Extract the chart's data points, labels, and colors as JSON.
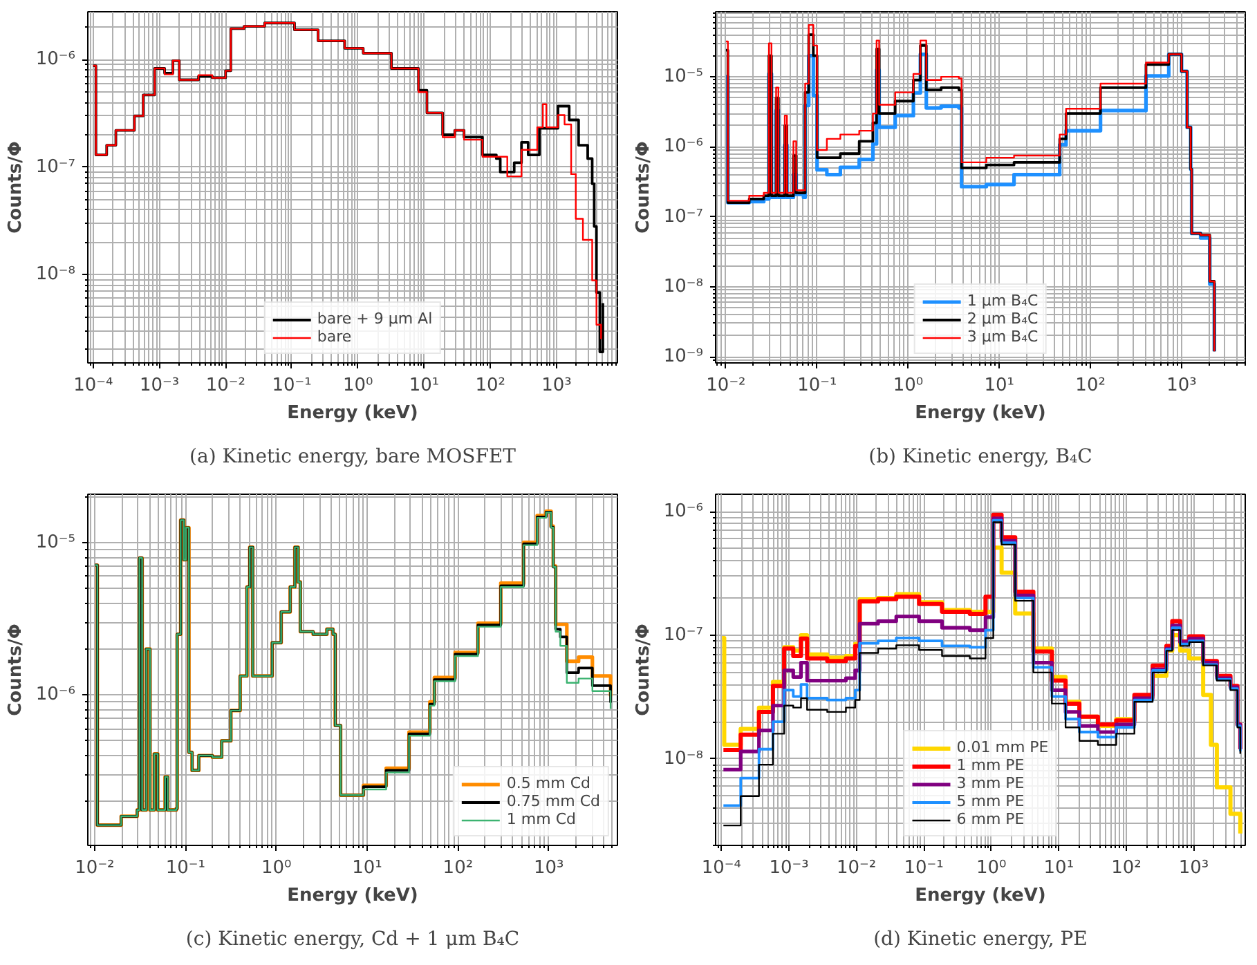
{
  "chart_data": [
    {
      "type": "step",
      "title": "(a) Kinetic energy, bare MOSFET",
      "xlabel": "Energy (keV)",
      "ylabel": "Counts/Φ",
      "log": "xy",
      "grid": true,
      "legend": "bottom",
      "xlim": [
        8.3e-05,
        8300.0
      ],
      "ylim": [
        1.5e-09,
        2.8e-06
      ],
      "xticks": [
        {
          "value": 0.0001,
          "label": "10⁻⁴"
        },
        {
          "value": 0.001,
          "label": "10⁻³"
        },
        {
          "value": 0.01,
          "label": "10⁻²"
        },
        {
          "value": 0.1,
          "label": "10⁻¹"
        },
        {
          "value": 1,
          "label": "10⁰"
        },
        {
          "value": 10,
          "label": "10¹"
        },
        {
          "value": 100,
          "label": "10²"
        },
        {
          "value": 1000,
          "label": "10³"
        }
      ],
      "yticks": [
        {
          "value": 1e-08,
          "label": "10⁻⁸"
        },
        {
          "value": 1e-07,
          "label": "10⁻⁷"
        },
        {
          "value": 1e-06,
          "label": "10⁻⁶"
        }
      ],
      "series": [
        {
          "name": "bare + 9 µm Al",
          "color": "#000000",
          "x": [
            0.0001,
            0.00011,
            0.00016,
            0.00022,
            0.00042,
            0.00057,
            0.00085,
            0.0012,
            0.0016,
            0.002,
            0.0039,
            0.0063,
            0.01,
            0.012,
            0.019,
            0.039,
            0.11,
            0.25,
            0.63,
            1.2,
            3.2,
            8.2,
            11,
            19,
            29,
            40,
            76,
            123,
            141,
            229,
            295,
            372,
            550,
            1050,
            1550,
            2150,
            2950,
            3450,
            3700,
            4000,
            4500,
            5000
          ],
          "values": [
            8.8e-07,
            1.3e-07,
            1.6e-07,
            2.2e-07,
            3e-07,
            4.7e-07,
            8.3e-07,
            7.5e-07,
            9.8e-07,
            6.5e-07,
            7e-07,
            6.8e-07,
            7.9e-07,
            1.95e-06,
            2.05e-06,
            2.2e-06,
            1.9e-06,
            1.5e-06,
            1.28e-06,
            1.15e-06,
            8.3e-07,
            5.2e-07,
            3.2e-07,
            2e-07,
            2.2e-07,
            1.9e-07,
            1.3e-07,
            1.2e-07,
            9e-08,
            1.1e-07,
            1.7e-07,
            1.3e-07,
            2.3e-07,
            3.7e-07,
            2.75e-07,
            1.6e-07,
            1.2e-07,
            7e-08,
            2.8e-08,
            6.8e-09,
            1.9e-09,
            5.4e-09
          ]
        },
        {
          "name": "bare",
          "color": "#ff0000",
          "x": [
            0.0001,
            0.00011,
            0.00016,
            0.00022,
            0.00042,
            0.00057,
            0.00085,
            0.0012,
            0.0016,
            0.002,
            0.0039,
            0.0063,
            0.01,
            0.012,
            0.019,
            0.039,
            0.11,
            0.25,
            0.63,
            1.2,
            3.2,
            8.2,
            11,
            19,
            29,
            40,
            76,
            180,
            295,
            510,
            620,
            700,
            1050,
            1320,
            1660,
            1950,
            2500,
            3450,
            4000,
            4700
          ],
          "values": [
            8.8e-07,
            1.3e-07,
            1.6e-07,
            2.2e-07,
            3e-07,
            4.7e-07,
            8.3e-07,
            7.3e-07,
            9.8e-07,
            6.5e-07,
            7.2e-07,
            6.8e-07,
            7.9e-07,
            1.95e-06,
            2.05e-06,
            2.2e-06,
            1.9e-06,
            1.5e-06,
            1.28e-06,
            1.15e-06,
            8.3e-07,
            5e-07,
            3.2e-07,
            1.9e-07,
            2.2e-07,
            1.8e-07,
            1.25e-07,
            8.2e-08,
            1.45e-07,
            2.35e-07,
            3.85e-07,
            2.35e-07,
            3.05e-07,
            2.5e-07,
            8.6e-08,
            3.3e-08,
            2.1e-08,
            8.8e-09,
            3.4e-09,
            2.5e-09
          ]
        }
      ]
    },
    {
      "type": "step",
      "title": "(b) Kinetic energy, B₄C",
      "xlabel": "Energy (keV)",
      "ylabel": "Counts/Φ",
      "log": "xy",
      "grid": true,
      "legend": "bottom",
      "xlim": [
        0.0077,
        5000.0
      ],
      "ylim": [
        8.2e-10,
        8.5e-05
      ],
      "xticks": [
        {
          "value": 0.01,
          "label": "10⁻²"
        },
        {
          "value": 0.1,
          "label": "10⁻¹"
        },
        {
          "value": 1,
          "label": "10⁰"
        },
        {
          "value": 10,
          "label": "10¹"
        },
        {
          "value": 100,
          "label": "10²"
        },
        {
          "value": 1000,
          "label": "10³"
        }
      ],
      "yticks": [
        {
          "value": 1e-09,
          "label": "10⁻⁹"
        },
        {
          "value": 1e-08,
          "label": "10⁻⁸"
        },
        {
          "value": 1e-07,
          "label": "10⁻⁷"
        },
        {
          "value": 1e-06,
          "label": "10⁻⁶"
        },
        {
          "value": 1e-05,
          "label": "10⁻⁵"
        }
      ],
      "x": [
        0.01,
        0.0105,
        0.018,
        0.026,
        0.0296,
        0.0316,
        0.0355,
        0.0376,
        0.0442,
        0.0467,
        0.055,
        0.059,
        0.071,
        0.074,
        0.081,
        0.091,
        0.1,
        0.128,
        0.18,
        0.29,
        0.41,
        0.45,
        0.48,
        0.72,
        1.14,
        1.36,
        1.58,
        2.3,
        3.6,
        3.85,
        7.2,
        14.5,
        46,
        54,
        129,
        407,
        724,
        912,
        1000,
        1150,
        1260,
        1290,
        1620,
        2040,
        2290
      ],
      "series": [
        {
          "name": "1 µm B₄C",
          "color": "#1e90ff",
          "values": [
            1e-05,
            1.6e-07,
            1.65e-07,
            1.8e-07,
            1.1e-05,
            1.9e-07,
            3.3e-06,
            1.9e-07,
            1.06e-06,
            1.9e-07,
            4e-07,
            2.1e-07,
            1.9e-07,
            3.9e-06,
            2e-05,
            5.4e-06,
            4.7e-07,
            4e-07,
            5.1e-07,
            6.6e-07,
            1.1e-06,
            1.25e-05,
            1.9e-06,
            2.8e-06,
            5.9e-06,
            2.1e-05,
            3.6e-06,
            3.8e-06,
            3.6e-06,
            2.7e-07,
            2.9e-07,
            4e-07,
            1.07e-06,
            1.7e-06,
            3.3e-06,
            1.03e-05,
            2.1e-05,
            2.1e-05,
            1.2e-05,
            1.9e-06,
            4.8e-07,
            5.8e-08,
            5e-08,
            1.1e-08,
            1.2e-09
          ]
        },
        {
          "name": "2 µm B₄C",
          "color": "#000000",
          "values": [
            2.4e-05,
            1.6e-07,
            1.8e-07,
            2e-07,
            2e-05,
            2e-07,
            5e-06,
            2e-07,
            2e-06,
            2e-07,
            7.5e-07,
            2.2e-07,
            2.2e-07,
            6e-06,
            4e-05,
            2e-05,
            7e-07,
            7e-07,
            8e-07,
            1.2e-06,
            2.2e-06,
            2.5e-05,
            3e-06,
            4.5e-06,
            9e-06,
            2.8e-05,
            6.5e-06,
            7e-06,
            6.5e-06,
            5e-07,
            5.5e-07,
            6e-07,
            1.3e-06,
            3e-06,
            7e-06,
            1.5e-05,
            2.1e-05,
            2.1e-05,
            1.2e-05,
            1.9e-06,
            4.8e-07,
            5.8e-08,
            5.5e-08,
            1.2e-08,
            1.2e-09
          ]
        },
        {
          "name": "3 µm B₄C",
          "color": "#ff0000",
          "values": [
            3.2e-05,
            1.7e-07,
            2e-07,
            2.2e-07,
            3e-05,
            2.2e-07,
            7e-06,
            2.2e-07,
            2.8e-06,
            2.2e-07,
            1.2e-06,
            2.4e-07,
            2.4e-07,
            8e-06,
            5.5e-05,
            2.8e-05,
            9e-07,
            1.3e-06,
            1.5e-06,
            1.7e-06,
            3e-06,
            3.3e-05,
            4e-06,
            6e-06,
            1.1e-05,
            3.3e-05,
            9e-06,
            1e-05,
            9.5e-06,
            6e-07,
            7e-07,
            7.5e-07,
            1.5e-06,
            3.5e-06,
            8e-06,
            1.6e-05,
            2.1e-05,
            2.1e-05,
            1.2e-05,
            1.9e-06,
            4.8e-07,
            5.8e-08,
            5.5e-08,
            1.2e-08,
            1.2e-09
          ]
        }
      ]
    },
    {
      "type": "step",
      "title": "(c) Kinetic energy, Cd + 1 μm B₄C",
      "xlabel": "Energy (keV)",
      "ylabel": "Counts/Φ",
      "log": "xy",
      "grid": true,
      "legend": "bottom right",
      "xlim": [
        0.0084,
        5700.0
      ],
      "ylim": [
        1.03e-07,
        2.07e-05
      ],
      "xticks": [
        {
          "value": 0.01,
          "label": "10⁻²"
        },
        {
          "value": 0.1,
          "label": "10⁻¹"
        },
        {
          "value": 1,
          "label": "10⁰"
        },
        {
          "value": 10,
          "label": "10¹"
        },
        {
          "value": 100,
          "label": "10²"
        },
        {
          "value": 1000,
          "label": "10³"
        }
      ],
      "yticks": [
        {
          "value": 1e-06,
          "label": "10⁻⁶"
        },
        {
          "value": 1e-05,
          "label": "10⁻⁵"
        }
      ],
      "x": [
        0.0101,
        0.0107,
        0.0196,
        0.0294,
        0.0311,
        0.0333,
        0.037,
        0.0406,
        0.0452,
        0.0495,
        0.0596,
        0.0637,
        0.079,
        0.081,
        0.0885,
        0.096,
        0.101,
        0.109,
        0.118,
        0.14,
        0.198,
        0.25,
        0.316,
        0.4,
        0.475,
        0.51,
        0.55,
        0.9,
        1.13,
        1.42,
        1.6,
        1.74,
        1.84,
        2.54,
        3.6,
        4.2,
        4.45,
        5.1,
        9.1,
        16.2,
        28.9,
        49,
        55,
        93,
        166,
        296,
        528,
        745,
        933,
        1060,
        1120,
        1190,
        1340,
        1580,
        2130,
        3020,
        4790
      ],
      "series": [
        {
          "name": "0.5 mm Cd",
          "color": "#ff8c00",
          "values": [
            7.1e-06,
            1.4e-07,
            1.6e-07,
            1.76e-07,
            7.9e-06,
            1.76e-07,
            2e-06,
            1.76e-07,
            4.1e-07,
            1.76e-07,
            2.9e-07,
            1.76e-07,
            1.8e-07,
            2.5e-06,
            1.4e-05,
            7.7e-06,
            1.25e-05,
            4.2e-07,
            3.2e-07,
            4e-07,
            3.9e-07,
            5e-07,
            7.9e-07,
            1.33e-06,
            5.1e-06,
            9.3e-06,
            1.33e-06,
            2.2e-06,
            3.5e-06,
            5.1e-06,
            9.3e-06,
            5.5e-06,
            2.6e-06,
            2.5e-06,
            2.7e-06,
            2.5e-06,
            6.3e-07,
            2.2e-07,
            2.55e-07,
            3.3e-07,
            5.7e-07,
            9e-07,
            1.3e-06,
            1.9e-06,
            2.95e-06,
            5.4e-06,
            1e-05,
            1.5e-05,
            1.6e-05,
            1.28e-05,
            7e-06,
            2.9e-06,
            2.9e-06,
            1.66e-06,
            1.77e-06,
            1.33e-06,
            9.8e-07
          ]
        },
        {
          "name": "0.75 mm Cd",
          "color": "#000000",
          "values": [
            7.1e-06,
            1.4e-07,
            1.6e-07,
            1.76e-07,
            7.9e-06,
            1.76e-07,
            2e-06,
            1.76e-07,
            4.1e-07,
            1.76e-07,
            2.9e-07,
            1.76e-07,
            1.8e-07,
            2.5e-06,
            1.4e-05,
            7.7e-06,
            1.25e-05,
            4.2e-07,
            3.2e-07,
            4e-07,
            3.9e-07,
            5e-07,
            7.9e-07,
            1.33e-06,
            5.1e-06,
            9.3e-06,
            1.33e-06,
            2.2e-06,
            3.5e-06,
            5.1e-06,
            9.3e-06,
            5.5e-06,
            2.6e-06,
            2.5e-06,
            2.7e-06,
            2.5e-06,
            6.3e-07,
            2.2e-07,
            2.5e-07,
            3.2e-07,
            5.55e-07,
            8.7e-07,
            1.26e-06,
            1.85e-06,
            2.87e-06,
            5.2e-06,
            9.8e-06,
            1.47e-05,
            1.58e-05,
            1.26e-05,
            6.9e-06,
            2.7e-06,
            2.4e-06,
            1.4e-06,
            1.5e-06,
            1.15e-06,
            8.9e-07
          ]
        },
        {
          "name": "1 mm Cd",
          "color": "#3cb371",
          "values": [
            7.1e-06,
            1.4e-07,
            1.6e-07,
            1.76e-07,
            7.9e-06,
            1.76e-07,
            2e-06,
            1.76e-07,
            4.1e-07,
            1.76e-07,
            2.9e-07,
            1.76e-07,
            1.8e-07,
            2.5e-06,
            1.4e-05,
            7.7e-06,
            1.25e-05,
            4.2e-07,
            3.2e-07,
            4e-07,
            3.9e-07,
            5e-07,
            7.9e-07,
            1.33e-06,
            5.1e-06,
            9.3e-06,
            1.33e-06,
            2.2e-06,
            3.5e-06,
            5.1e-06,
            9.3e-06,
            5.5e-06,
            2.6e-06,
            2.5e-06,
            2.7e-06,
            2.5e-06,
            6.3e-07,
            2.2e-07,
            2.4e-07,
            3.1e-07,
            5.4e-07,
            8.5e-07,
            1.23e-06,
            1.8e-06,
            2.8e-06,
            5.1e-06,
            9.6e-06,
            1.45e-05,
            1.57e-05,
            1.25e-05,
            6.9e-06,
            2.6e-06,
            2.1e-06,
            1.2e-06,
            1.28e-06,
            1.06e-06,
            8.1e-07
          ]
        }
      ]
    },
    {
      "type": "step",
      "title": "(d) Kinetic energy, PE",
      "xlabel": "Energy (keV)",
      "ylabel": "Counts/Φ",
      "log": "xy",
      "grid": true,
      "legend": "bottom",
      "xlim": [
        8.2e-05,
        5800.0
      ],
      "ylim": [
        2e-09,
        1.38e-06
      ],
      "xticks": [
        {
          "value": 0.0001,
          "label": "10⁻⁴"
        },
        {
          "value": 0.001,
          "label": "10⁻³"
        },
        {
          "value": 0.01,
          "label": "10⁻²"
        },
        {
          "value": 0.1,
          "label": "10⁻¹"
        },
        {
          "value": 1,
          "label": "10⁰"
        },
        {
          "value": 10,
          "label": "10¹"
        },
        {
          "value": 100,
          "label": "10²"
        },
        {
          "value": 1000,
          "label": "10³"
        }
      ],
      "yticks": [
        {
          "value": 1e-08,
          "label": "10⁻⁸"
        },
        {
          "value": 1e-07,
          "label": "10⁻⁷"
        },
        {
          "value": 1e-06,
          "label": "10⁻⁶"
        }
      ],
      "x": [
        0.000107,
        0.000193,
        0.00036,
        0.00058,
        0.00085,
        0.00116,
        0.00151,
        0.00186,
        0.0037,
        0.007,
        0.0096,
        0.0112,
        0.021,
        0.039,
        0.085,
        0.186,
        0.48,
        0.82,
        1.07,
        1.42,
        2.26,
        4.2,
        7.9,
        12.6,
        20.2,
        38,
        71,
        132,
        246,
        393,
        480,
        630,
        857,
        1380,
        2200,
        3500,
        4440,
        4900
      ],
      "series": [
        {
          "name": "0.01 mm PE",
          "color": "#ffd700",
          "x": [
            0.000102,
            0.00011,
            0.000193,
            0.00036,
            0.00058,
            0.00085,
            0.00116,
            0.00151,
            0.00186,
            0.0037,
            0.007,
            0.0096,
            0.0112,
            0.021,
            0.039,
            0.085,
            0.186,
            0.48,
            0.82,
            1.07,
            1.42,
            2.26,
            4.2,
            7.9,
            12.6,
            20.2,
            38,
            71,
            132,
            246,
            393,
            480,
            630,
            857,
            1380,
            1800,
            2200,
            3500,
            4900
          ],
          "values": [
            9.5e-08,
            1.3e-08,
            1.75e-08,
            2.6e-08,
            4.2e-08,
            8e-08,
            7.5e-08,
            1e-07,
            7e-08,
            6.6e-08,
            6.8e-08,
            8.5e-08,
            1.95e-07,
            2e-07,
            2.15e-07,
            1.85e-07,
            1.6e-07,
            1.55e-07,
            1.55e-07,
            5.1e-07,
            3.2e-07,
            1.5e-07,
            7.8e-08,
            4.6e-08,
            2.9e-08,
            2.2e-08,
            1.85e-08,
            2.1e-08,
            3.2e-08,
            4.7e-08,
            7.5e-08,
            1e-07,
            7.5e-08,
            6.5e-08,
            3.3e-08,
            1.3e-08,
            5.9e-09,
            3.6e-09,
            2.5e-09
          ]
        },
        {
          "name": "1 mm PE",
          "color": "#ff0000",
          "values": [
            1.18e-08,
            1.57e-08,
            2.4e-08,
            3.9e-08,
            7.8e-08,
            6.8e-08,
            9.4e-08,
            6.5e-08,
            6.2e-08,
            6.5e-08,
            8.2e-08,
            1.88e-07,
            1.96e-07,
            2.05e-07,
            1.79e-07,
            1.55e-07,
            1.49e-07,
            2.05e-07,
            9.4e-07,
            6.2e-07,
            2.25e-07,
            7.4e-08,
            4.3e-08,
            2.8e-08,
            2.2e-08,
            1.9e-08,
            2.05e-08,
            3.3e-08,
            5.7e-08,
            8.2e-08,
            1.3e-07,
            8.9e-08,
            9.8e-08,
            6.2e-08,
            4.7e-08,
            3.9e-08,
            1.9e-08,
            1.2e-08
          ]
        },
        {
          "name": "3 mm PE",
          "color": "#800080",
          "values": [
            8.2e-09,
            1.15e-08,
            1.7e-08,
            2.7e-08,
            5.2e-08,
            4.6e-08,
            6e-08,
            4.3e-08,
            4.3e-08,
            4.5e-08,
            5.2e-08,
            1.24e-07,
            1.3e-07,
            1.42e-07,
            1.3e-07,
            1.15e-07,
            1.1e-07,
            1.4e-07,
            8.8e-07,
            5.8e-07,
            2.1e-07,
            6e-08,
            3.6e-08,
            2.4e-08,
            1.85e-08,
            1.65e-08,
            1.9e-08,
            3.1e-08,
            5.3e-08,
            7.8e-08,
            1.2e-07,
            8.8e-08,
            9.4e-08,
            6e-08,
            4.5e-08,
            3.8e-08,
            1.9e-08,
            1.2e-08
          ]
        },
        {
          "name": "5 mm PE",
          "color": "#1e90ff",
          "values": [
            4.2e-09,
            7e-09,
            1.2e-08,
            2e-08,
            3.6e-08,
            3.2e-08,
            4e-08,
            3.1e-08,
            3e-08,
            3.1e-08,
            3.6e-08,
            8.6e-08,
            9e-08,
            9.5e-08,
            9e-08,
            8.2e-08,
            8e-08,
            1.1e-07,
            8.5e-07,
            5.6e-07,
            2e-07,
            5.5e-08,
            3.2e-08,
            2.1e-08,
            1.65e-08,
            1.5e-08,
            1.8e-08,
            3e-08,
            5.2e-08,
            7.7e-08,
            1.15e-07,
            8.5e-08,
            9e-08,
            5.8e-08,
            4.4e-08,
            3.7e-08,
            1.85e-08,
            1.15e-08
          ]
        },
        {
          "name": "6 mm PE",
          "color": "#000000",
          "values": [
            2.9e-09,
            5e-09,
            9e-09,
            1.6e-08,
            2.7e-08,
            2.6e-08,
            3.1e-08,
            2.5e-08,
            2.4e-08,
            2.6e-08,
            3e-08,
            7.2e-08,
            7.8e-08,
            8.3e-08,
            7.6e-08,
            6.8e-08,
            6.5e-08,
            9.5e-08,
            8.2e-07,
            5.4e-07,
            1.9e-07,
            5e-08,
            2.8e-08,
            1.8e-08,
            1.4e-08,
            1.3e-08,
            1.6e-08,
            2.9e-08,
            5e-08,
            7.5e-08,
            1.1e-07,
            8.2e-08,
            8.8e-08,
            5.7e-08,
            4.3e-08,
            3.6e-08,
            1.8e-08,
            1.1e-08
          ]
        }
      ]
    }
  ]
}
